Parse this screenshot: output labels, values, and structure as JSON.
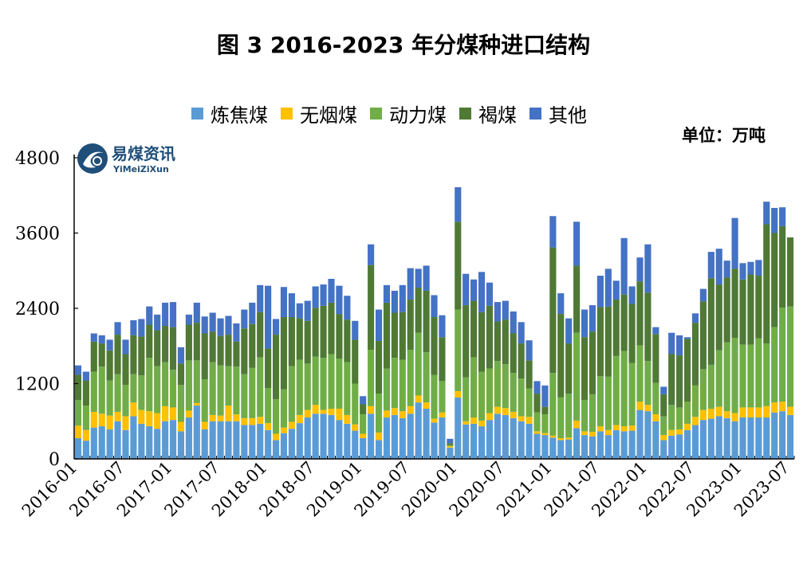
{
  "title": "图 3 2016-2023 年分煤种进口结构",
  "unit_label": "单位：万吨",
  "logo": {
    "name": "易煤资讯",
    "subtitle": "YiMeiZiXun"
  },
  "chart_data": {
    "type": "bar",
    "stacked": true,
    "title": "图 3 2016-2023 年分煤种进口结构",
    "ylabel": "单位：万吨",
    "ylim": [
      0,
      4800
    ],
    "yticks": [
      0,
      1200,
      2400,
      3600,
      4800
    ],
    "xticks": [
      "2016-01",
      "2016-07",
      "2017-01",
      "2017-07",
      "2018-01",
      "2018-07",
      "2019-01",
      "2019-07",
      "2020-01",
      "2020-07",
      "2021-01",
      "2021-07",
      "2022-01",
      "2022-07",
      "2023-01",
      "2023-07"
    ],
    "categories": [
      "2016-01",
      "2016-02",
      "2016-03",
      "2016-04",
      "2016-05",
      "2016-06",
      "2016-07",
      "2016-08",
      "2016-09",
      "2016-10",
      "2016-11",
      "2016-12",
      "2017-01",
      "2017-02",
      "2017-03",
      "2017-04",
      "2017-05",
      "2017-06",
      "2017-07",
      "2017-08",
      "2017-09",
      "2017-10",
      "2017-11",
      "2017-12",
      "2018-01",
      "2018-02",
      "2018-03",
      "2018-04",
      "2018-05",
      "2018-06",
      "2018-07",
      "2018-08",
      "2018-09",
      "2018-10",
      "2018-11",
      "2018-12",
      "2019-01",
      "2019-02",
      "2019-03",
      "2019-04",
      "2019-05",
      "2019-06",
      "2019-07",
      "2019-08",
      "2019-09",
      "2019-10",
      "2019-11",
      "2019-12",
      "2020-01",
      "2020-02",
      "2020-03",
      "2020-04",
      "2020-05",
      "2020-06",
      "2020-07",
      "2020-08",
      "2020-09",
      "2020-10",
      "2020-11",
      "2020-12",
      "2021-01",
      "2021-02",
      "2021-03",
      "2021-04",
      "2021-05",
      "2021-06",
      "2021-07",
      "2021-08",
      "2021-09",
      "2021-10",
      "2021-11",
      "2021-12",
      "2022-01",
      "2022-02",
      "2022-03",
      "2022-04",
      "2022-05",
      "2022-06",
      "2022-07",
      "2022-08",
      "2022-09",
      "2022-10",
      "2022-11",
      "2022-12",
      "2023-01",
      "2023-02",
      "2023-03",
      "2023-04",
      "2023-05",
      "2023-06",
      "2023-07"
    ],
    "series": [
      {
        "name": "炼焦煤",
        "color": "#5B9BD5",
        "values": [
          330,
          290,
          500,
          520,
          470,
          600,
          460,
          680,
          560,
          520,
          480,
          600,
          620,
          440,
          660,
          850,
          470,
          600,
          600,
          600,
          600,
          540,
          540,
          560,
          460,
          300,
          410,
          480,
          570,
          660,
          720,
          720,
          700,
          620,
          560,
          450,
          330,
          720,
          300,
          660,
          700,
          650,
          720,
          900,
          800,
          580,
          660,
          180,
          980,
          550,
          560,
          520,
          620,
          720,
          700,
          650,
          600,
          560,
          400,
          380,
          340,
          300,
          310,
          490,
          380,
          360,
          440,
          380,
          460,
          440,
          450,
          780,
          760,
          600,
          300,
          370,
          390,
          460,
          540,
          620,
          640,
          680,
          650,
          600,
          660,
          660,
          660,
          660,
          740,
          760,
          700
        ]
      },
      {
        "name": "无烟煤",
        "color": "#FFC000",
        "values": [
          200,
          170,
          250,
          200,
          220,
          150,
          220,
          220,
          220,
          240,
          250,
          240,
          200,
          150,
          110,
          40,
          120,
          100,
          90,
          250,
          110,
          110,
          110,
          110,
          110,
          100,
          90,
          110,
          130,
          120,
          140,
          60,
          100,
          180,
          140,
          100,
          70,
          120,
          120,
          110,
          110,
          110,
          120,
          110,
          100,
          60,
          80,
          20,
          100,
          50,
          100,
          90,
          110,
          110,
          110,
          100,
          80,
          110,
          40,
          30,
          30,
          30,
          30,
          120,
          60,
          70,
          80,
          80,
          80,
          80,
          80,
          130,
          100,
          110,
          80,
          90,
          80,
          100,
          130,
          160,
          160,
          150,
          110,
          130,
          160,
          160,
          160,
          180,
          160,
          150,
          130
        ]
      },
      {
        "name": "动力煤",
        "color": "#70AD47",
        "values": [
          410,
          390,
          640,
          750,
          560,
          600,
          500,
          450,
          550,
          850,
          750,
          700,
          600,
          590,
          800,
          680,
          680,
          840,
          800,
          630,
          760,
          700,
          800,
          950,
          560,
          550,
          610,
          890,
          880,
          740,
          770,
          830,
          870,
          800,
          840,
          650,
          310,
          900,
          620,
          670,
          800,
          820,
          900,
          1000,
          800,
          700,
          500,
          20,
          1300,
          700,
          960,
          780,
          710,
          730,
          700,
          620,
          600,
          450,
          300,
          300,
          1000,
          650,
          700,
          1400,
          500,
          600,
          800,
          850,
          1100,
          1200,
          1000,
          900,
          700,
          500,
          300,
          400,
          350,
          350,
          500,
          650,
          700,
          900,
          1100,
          1200,
          1000,
          1000,
          1100,
          1000,
          1200,
          1500,
          1600
        ]
      },
      {
        "name": "褐煤",
        "color": "#4F7935",
        "values": [
          400,
          400,
          480,
          370,
          480,
          630,
          490,
          620,
          620,
          530,
          570,
          580,
          680,
          340,
          570,
          600,
          730,
          490,
          470,
          500,
          400,
          730,
          700,
          720,
          630,
          1030,
          1150,
          780,
          660,
          680,
          780,
          830,
          820,
          710,
          680,
          700,
          160,
          1350,
          840,
          1050,
          720,
          760,
          800,
          720,
          980,
          920,
          700,
          30,
          1400,
          1150,
          900,
          950,
          1000,
          630,
          710,
          630,
          560,
          450,
          300,
          120,
          2000,
          1330,
          800,
          1070,
          1000,
          1000,
          1100,
          1120,
          900,
          900,
          940,
          1020,
          1090,
          780,
          350,
          810,
          830,
          1000,
          1000,
          1080,
          1380,
          1050,
          1030,
          1100,
          1040,
          1120,
          1000,
          1900,
          1500,
          1300,
          1100
        ]
      },
      {
        "name": "其他",
        "color": "#4472C4",
        "values": [
          150,
          140,
          130,
          130,
          170,
          200,
          230,
          240,
          280,
          290,
          250,
          370,
          400,
          260,
          160,
          320,
          270,
          300,
          280,
          300,
          290,
          300,
          340,
          430,
          1000,
          250,
          480,
          380,
          240,
          320,
          340,
          340,
          380,
          450,
          380,
          300,
          130,
          330,
          500,
          280,
          350,
          430,
          500,
          300,
          400,
          350,
          350,
          70,
          550,
          500,
          340,
          640,
          370,
          310,
          300,
          350,
          340,
          320,
          200,
          340,
          500,
          330,
          400,
          700,
          440,
          420,
          500,
          600,
          300,
          900,
          280,
          380,
          770,
          110,
          120,
          340,
          320,
          30,
          150,
          200,
          420,
          570,
          270,
          810,
          260,
          200,
          250,
          360,
          400,
          300,
          0
        ]
      }
    ]
  }
}
